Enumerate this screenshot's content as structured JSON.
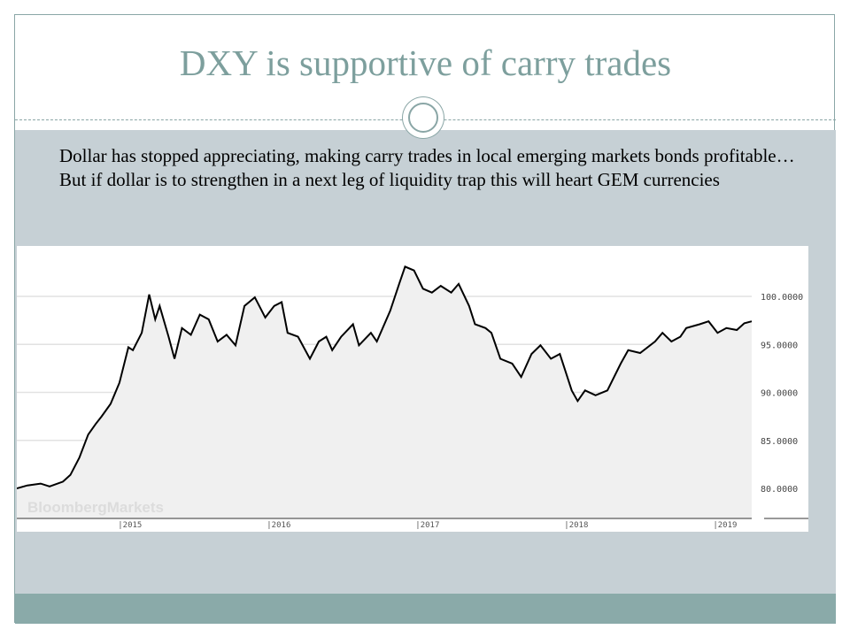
{
  "slide": {
    "title": "DXY is supportive of carry trades",
    "body": "Dollar has stopped appreciating, making carry trades in local emerging markets bonds profitable… But if dollar is to strengthen in a next leg of liquidity trap this will heart GEM currencies"
  },
  "colors": {
    "title": "#7d9f9d",
    "band": "#c6d0d5",
    "footer": "#8aaaa9",
    "line": "#000000",
    "fill": "#f0f0f0"
  },
  "chart_data": {
    "type": "area",
    "title": "",
    "watermark": "BloombergMarkets",
    "xlabel": "",
    "ylabel": "",
    "xlim": [
      2014.32,
      2019.26
    ],
    "ylim": [
      78,
      103.5
    ],
    "y_ticks": [
      80,
      85,
      90,
      95,
      100
    ],
    "y_tick_labels": [
      "80.0000",
      "85.0000",
      "90.0000",
      "95.0000",
      "100.0000"
    ],
    "x_ticks": [
      2015,
      2016,
      2017,
      2018,
      2019
    ],
    "x_tick_labels": [
      "2015",
      "2016",
      "2017",
      "2018",
      "2019"
    ],
    "grid": true,
    "y_axis_position": "right",
    "series": [
      {
        "name": "DXY",
        "x": [
          2014.32,
          2014.39,
          2014.48,
          2014.54,
          2014.63,
          2014.68,
          2014.74,
          2014.8,
          2014.85,
          2014.89,
          2014.95,
          2015.01,
          2015.07,
          2015.1,
          2015.16,
          2015.21,
          2015.25,
          2015.28,
          2015.34,
          2015.38,
          2015.43,
          2015.49,
          2015.55,
          2015.61,
          2015.67,
          2015.73,
          2015.79,
          2015.85,
          2015.92,
          2015.99,
          2016.05,
          2016.1,
          2016.14,
          2016.21,
          2016.29,
          2016.35,
          2016.4,
          2016.44,
          2016.5,
          2016.58,
          2016.62,
          2016.7,
          2016.74,
          2016.83,
          2016.89,
          2016.93,
          2016.99,
          2017.05,
          2017.11,
          2017.17,
          2017.24,
          2017.29,
          2017.36,
          2017.4,
          2017.47,
          2017.51,
          2017.57,
          2017.65,
          2017.71,
          2017.78,
          2017.84,
          2017.91,
          2017.97,
          2018.05,
          2018.09,
          2018.14,
          2018.21,
          2018.29,
          2018.38,
          2018.43,
          2018.51,
          2018.61,
          2018.66,
          2018.72,
          2018.78,
          2018.82,
          2018.91,
          2018.97,
          2019.03,
          2019.09,
          2019.16,
          2019.21,
          2019.26
        ],
        "values": [
          80.0,
          80.3,
          80.5,
          80.2,
          80.7,
          81.4,
          83.2,
          85.6,
          86.7,
          87.5,
          88.8,
          91.0,
          94.7,
          94.4,
          96.2,
          100.2,
          97.6,
          99.0,
          95.8,
          93.5,
          96.7,
          96.0,
          98.1,
          97.6,
          95.3,
          96.0,
          94.9,
          99.0,
          99.9,
          97.8,
          99.0,
          99.4,
          96.2,
          95.8,
          93.5,
          95.3,
          95.8,
          94.4,
          95.8,
          97.1,
          94.9,
          96.2,
          95.3,
          98.5,
          101.3,
          103.1,
          102.7,
          100.8,
          100.4,
          101.1,
          100.4,
          101.3,
          99.0,
          97.1,
          96.7,
          96.2,
          93.5,
          93.0,
          91.6,
          94.0,
          94.9,
          93.5,
          94.0,
          90.2,
          89.1,
          90.2,
          89.7,
          90.2,
          93.0,
          94.4,
          94.1,
          95.3,
          96.2,
          95.3,
          95.8,
          96.7,
          97.1,
          97.4,
          96.2,
          96.7,
          96.5,
          97.2,
          97.4
        ]
      }
    ]
  }
}
